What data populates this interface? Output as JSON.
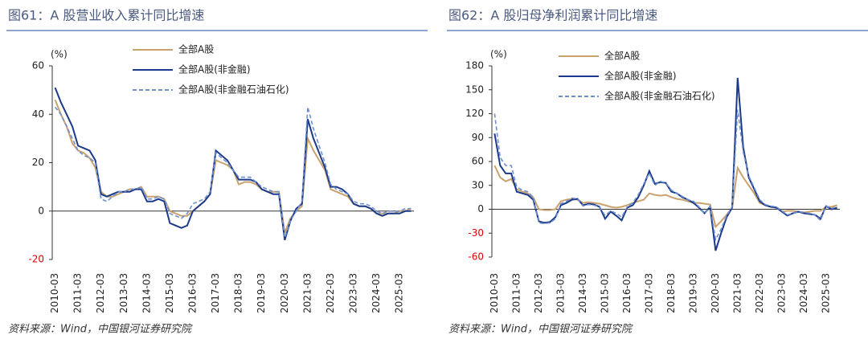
{
  "chart_data": [
    {
      "type": "line",
      "title": "图61：A 股营业收入累计同比增速",
      "unit": "(%)",
      "source": "资料来源：Wind，中国银河证券研究院",
      "categories": [
        "2010-03",
        null,
        null,
        null,
        "2011-03",
        null,
        null,
        null,
        "2012-03",
        null,
        null,
        null,
        "2013-03",
        null,
        null,
        null,
        "2014-03",
        null,
        null,
        null,
        "2015-03",
        null,
        null,
        null,
        "2016-03",
        null,
        null,
        null,
        "2017-03",
        null,
        null,
        null,
        "2018-03",
        null,
        null,
        null,
        "2019-03",
        null,
        null,
        null,
        "2020-03",
        null,
        null,
        null,
        "2021-03",
        null,
        null,
        null,
        "2022-03",
        null,
        null,
        null,
        "2023-03",
        null,
        null,
        null,
        "2024-03",
        null,
        null,
        null,
        "2025-03",
        null,
        null
      ],
      "ylim": [
        -20,
        60
      ],
      "yticks": [
        -20,
        0,
        20,
        40,
        60
      ],
      "series": [
        {
          "name": "全部A股",
          "color": "#c9a26e",
          "dashed": false,
          "values": [
            46,
            40,
            35,
            28,
            25,
            24,
            22,
            18,
            8,
            6,
            6,
            7,
            8,
            9,
            9,
            10,
            6,
            6,
            6,
            5,
            0,
            -1,
            -2,
            -2,
            0,
            2,
            4,
            7,
            21,
            20,
            19,
            17,
            11,
            12,
            12,
            11,
            9,
            8,
            8,
            8,
            -9,
            -3,
            0,
            2,
            30,
            25,
            21,
            17,
            9,
            8,
            7,
            6,
            3,
            2,
            2,
            1,
            -1,
            -1,
            -1,
            -1,
            0,
            0,
            1
          ]
        },
        {
          "name": "全部A股(非金融)",
          "color": "#1b3a8c",
          "dashed": false,
          "values": [
            51,
            45,
            40,
            35,
            27,
            26,
            25,
            21,
            7,
            6,
            7,
            8,
            8,
            8,
            9,
            9,
            4,
            4,
            5,
            4,
            -5,
            -6,
            -7,
            -6,
            0,
            2,
            4,
            7,
            25,
            23,
            21,
            17,
            13,
            13,
            13,
            12,
            9,
            8,
            7,
            7,
            -12,
            -4,
            1,
            3,
            38,
            30,
            24,
            18,
            10,
            10,
            9,
            7,
            3,
            2,
            2,
            1,
            -1,
            -2,
            -1,
            -1,
            -1,
            0,
            0
          ]
        },
        {
          "name": "全部A股(非金融石油石化)",
          "color": "#6f8fcf",
          "dashed": true,
          "values": [
            43,
            40,
            35,
            30,
            25,
            23,
            22,
            20,
            5,
            4,
            6,
            8,
            8,
            9,
            9,
            10,
            5,
            5,
            6,
            5,
            -1,
            -2,
            -3,
            -1,
            3,
            4,
            5,
            8,
            24,
            22,
            20,
            17,
            14,
            14,
            14,
            12,
            10,
            9,
            8,
            8,
            -11,
            -4,
            0,
            4,
            43,
            34,
            27,
            20,
            11,
            9,
            8,
            7,
            4,
            3,
            3,
            2,
            0,
            -1,
            0,
            0,
            0,
            1,
            1
          ]
        }
      ]
    },
    {
      "type": "line",
      "title": "图62：A 股归母净利润累计同比增速",
      "unit": "(%)",
      "source": "资料来源：Wind，中国银河证券研究院",
      "categories": [
        "2010-03",
        null,
        null,
        null,
        "2011-03",
        null,
        null,
        null,
        "2012-03",
        null,
        null,
        null,
        "2013-03",
        null,
        null,
        null,
        "2014-03",
        null,
        null,
        null,
        "2015-03",
        null,
        null,
        null,
        "2016-03",
        null,
        null,
        null,
        "2017-03",
        null,
        null,
        null,
        "2018-03",
        null,
        null,
        null,
        "2019-03",
        null,
        null,
        null,
        "2020-03",
        null,
        null,
        null,
        "2021-03",
        null,
        null,
        null,
        "2022-03",
        null,
        null,
        null,
        "2023-03",
        null,
        null,
        null,
        "2024-03",
        null,
        null,
        null,
        "2025-03",
        null,
        null
      ],
      "ylim": [
        -60,
        180
      ],
      "yticks": [
        -60,
        -30,
        0,
        30,
        60,
        90,
        120,
        150,
        180
      ],
      "series": [
        {
          "name": "全部A股",
          "color": "#c9a26e",
          "dashed": false,
          "values": [
            55,
            40,
            35,
            38,
            25,
            22,
            20,
            15,
            0,
            -1,
            -1,
            0,
            10,
            12,
            13,
            12,
            8,
            9,
            8,
            7,
            5,
            3,
            2,
            3,
            5,
            8,
            10,
            12,
            20,
            18,
            17,
            18,
            15,
            13,
            12,
            10,
            8,
            8,
            7,
            6,
            -22,
            -15,
            -7,
            2,
            52,
            40,
            30,
            20,
            8,
            5,
            3,
            2,
            -3,
            -2,
            -2,
            -3,
            -4,
            -3,
            -2,
            -2,
            3,
            3,
            5
          ]
        },
        {
          "name": "全部A股(非金融)",
          "color": "#1b3a8c",
          "dashed": false,
          "values": [
            95,
            55,
            45,
            45,
            22,
            20,
            18,
            12,
            -15,
            -17,
            -16,
            -10,
            5,
            8,
            12,
            13,
            5,
            7,
            6,
            3,
            -12,
            -3,
            -8,
            -14,
            2,
            5,
            15,
            30,
            48,
            32,
            34,
            33,
            22,
            20,
            15,
            12,
            8,
            2,
            -5,
            3,
            -52,
            -30,
            -10,
            2,
            165,
            78,
            40,
            25,
            10,
            5,
            3,
            2,
            -3,
            -8,
            -5,
            -3,
            -5,
            -6,
            -7,
            -12,
            4,
            0,
            2
          ]
        },
        {
          "name": "全部A股(非金融石油石化)",
          "color": "#6f8fcf",
          "dashed": true,
          "values": [
            120,
            65,
            55,
            55,
            28,
            24,
            22,
            15,
            -17,
            -18,
            -17,
            -12,
            7,
            10,
            14,
            13,
            4,
            6,
            5,
            3,
            -8,
            -2,
            -5,
            -10,
            3,
            8,
            18,
            32,
            45,
            30,
            35,
            33,
            24,
            20,
            16,
            12,
            10,
            3,
            -6,
            4,
            -38,
            -25,
            -8,
            3,
            125,
            72,
            42,
            27,
            12,
            6,
            4,
            3,
            -2,
            -7,
            -5,
            -3,
            -4,
            -5,
            -7,
            -14,
            4,
            1,
            3
          ]
        }
      ]
    }
  ]
}
